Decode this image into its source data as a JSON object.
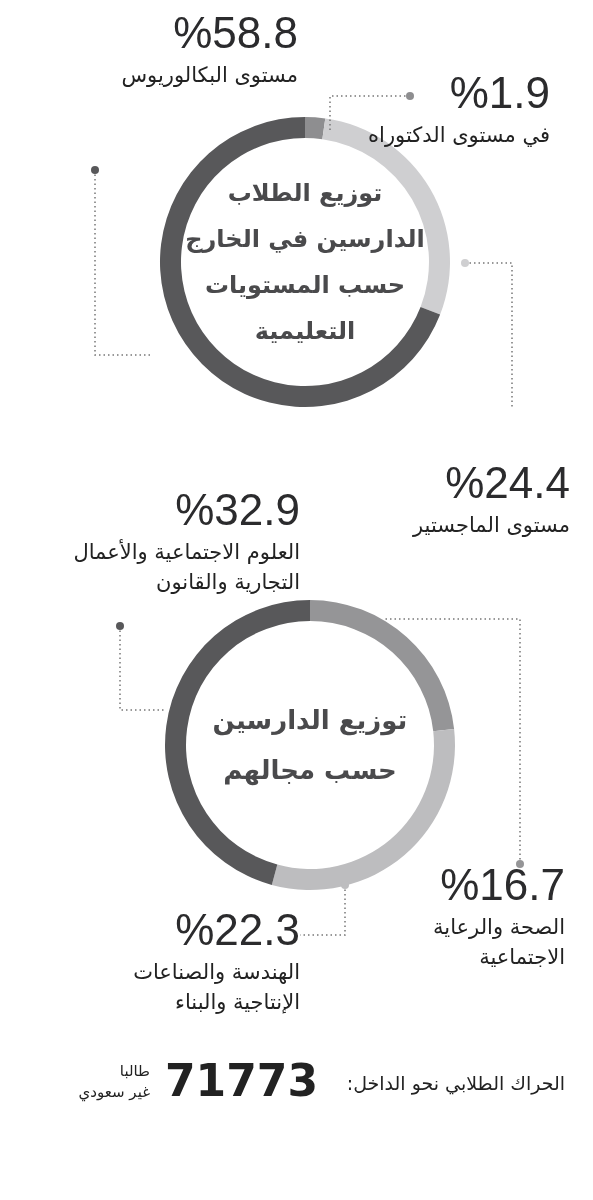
{
  "chart_data": [
    {
      "type": "donut",
      "title": "توزيع الطلاب\nالدارسين في الخارج\nحسب المستويات\nالتعليمية",
      "categories": [
        "في مستوى الدكتوراه",
        "مستوى الماجستير",
        "مستوى البكالوريوس"
      ],
      "values": [
        1.9,
        24.4,
        58.8
      ],
      "colors": [
        "#8e8e90",
        "#cfcfd1",
        "#58585a"
      ],
      "value_labels": [
        "%1.9",
        "%24.4",
        "%58.8"
      ]
    },
    {
      "type": "donut",
      "title": "توزيع الدارسين\nحسب مجالهم",
      "categories": [
        "الصحة والرعاية\nالاجتماعية",
        "الهندسة والصناعات\nالإنتاجية والبناء",
        "العلوم الاجتماعية والأعمال\nالتجارية والقانون"
      ],
      "values": [
        16.7,
        22.3,
        32.9
      ],
      "colors": [
        "#959597",
        "#bdbdbf",
        "#58585a"
      ],
      "value_labels": [
        "%16.7",
        "%22.3",
        "%32.9"
      ],
      "annotations": [
        "الحراك الطلابي نحو الداخل:",
        "71773",
        "طالبا",
        "غير سعودي"
      ]
    }
  ]
}
